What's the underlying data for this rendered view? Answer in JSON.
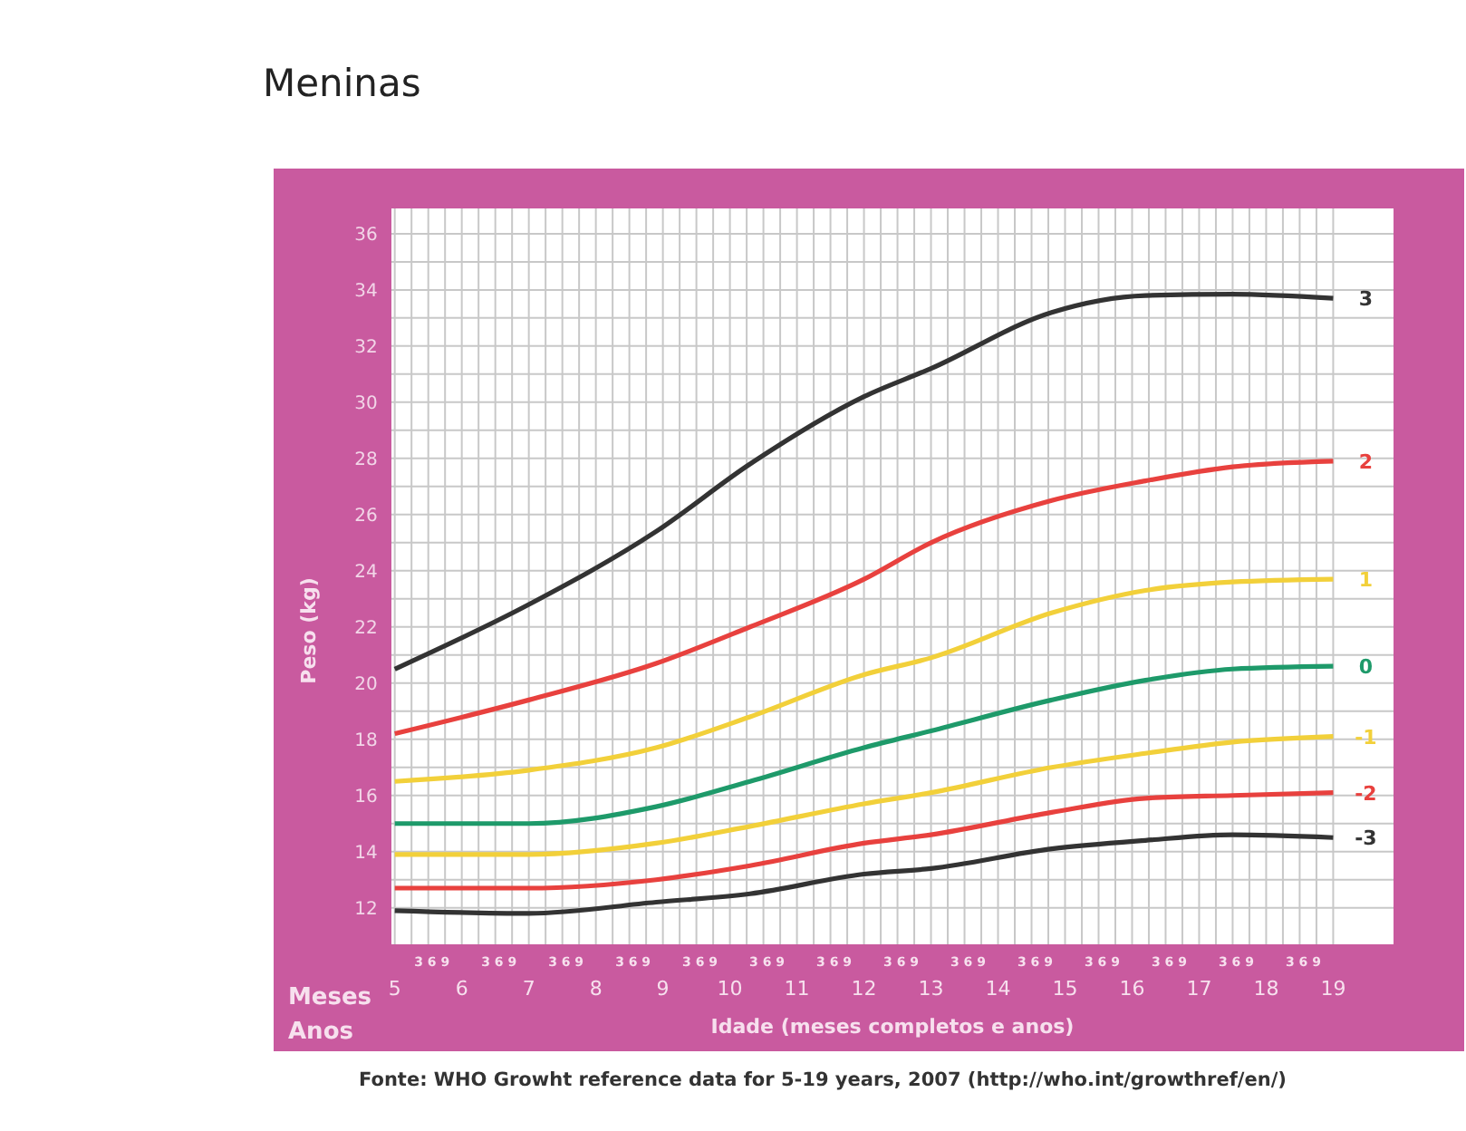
{
  "chart_data": {
    "type": "line",
    "title": "Meninas",
    "xlabel": "Idade (meses completos e anos)",
    "ylabel": "Peso (kg)",
    "annotations": [
      "Meses",
      "Anos",
      "Fonte: WHO Growht reference data for 5-19 years, 2007 (http://who.int/growthref/en/)",
      "3 6 9",
      "3 6 9",
      "3 6 9",
      "3 6 9",
      "3 6 9",
      "3 6 9",
      "3 6 9",
      "3 6 9",
      "3 6 9",
      "3 6 9",
      "3 6 9",
      "3 6 9",
      "3 6 9",
      "3 6 9"
    ],
    "x": [
      5,
      7,
      8.9,
      10.3,
      12,
      13,
      14.8,
      16.2,
      17.5,
      19
    ],
    "series": [
      {
        "name": "3",
        "color": "#333333",
        "values": [
          20.5,
          22.8,
          25.4,
          27.8,
          30.2,
          31.2,
          33.2,
          33.8,
          33.85,
          33.7
        ]
      },
      {
        "name": "2",
        "color": "#e8413e",
        "values": [
          18.2,
          19.4,
          20.7,
          22.0,
          23.7,
          25.0,
          26.5,
          27.2,
          27.7,
          27.9
        ]
      },
      {
        "name": "1",
        "color": "#f2d03a",
        "values": [
          16.5,
          16.9,
          17.7,
          18.8,
          20.3,
          20.9,
          22.5,
          23.3,
          23.6,
          23.7
        ]
      },
      {
        "name": "0",
        "color": "#1e9a6a",
        "values": [
          15.0,
          15.0,
          15.6,
          16.5,
          17.7,
          18.3,
          19.4,
          20.1,
          20.5,
          20.6
        ]
      },
      {
        "name": "-1",
        "color": "#f2d03a",
        "values": [
          13.9,
          13.9,
          14.3,
          14.9,
          15.7,
          16.1,
          17.0,
          17.5,
          17.9,
          18.1
        ]
      },
      {
        "name": "-2",
        "color": "#e8413e",
        "values": [
          12.7,
          12.7,
          13.0,
          13.5,
          14.3,
          14.6,
          15.4,
          15.9,
          16.0,
          16.1
        ]
      },
      {
        "name": "-3",
        "color": "#333333",
        "values": [
          11.9,
          11.8,
          12.2,
          12.5,
          13.2,
          13.4,
          14.1,
          14.4,
          14.6,
          14.5
        ]
      }
    ],
    "xlim": [
      4.95,
      19.9
    ],
    "ylim": [
      10.7,
      36.9
    ],
    "xticks": [
      5,
      {
        "value": 5.25,
        "label": null
      },
      {
        "value": 5.5,
        "label": null
      },
      {
        "value": 5.75,
        "label": null
      },
      6,
      {
        "value": 6.25,
        "label": null
      },
      {
        "value": 6.5,
        "label": null
      },
      {
        "value": 6.75,
        "label": null
      },
      7,
      {
        "value": 7.25,
        "label": null
      },
      {
        "value": 7.5,
        "label": null
      },
      {
        "value": 7.75,
        "label": null
      },
      8,
      {
        "value": 8.25,
        "label": null
      },
      {
        "value": 8.5,
        "label": null
      },
      {
        "value": 8.75,
        "label": null
      },
      9,
      {
        "value": 9.25,
        "label": null
      },
      {
        "value": 9.5,
        "label": null
      },
      {
        "value": 9.75,
        "label": null
      },
      10,
      {
        "value": 10.25,
        "label": null
      },
      {
        "value": 10.5,
        "label": null
      },
      {
        "value": 10.75,
        "label": null
      },
      11,
      {
        "value": 11.25,
        "label": null
      },
      {
        "value": 11.5,
        "label": null
      },
      {
        "value": 11.75,
        "label": null
      },
      12,
      {
        "value": 12.25,
        "label": null
      },
      {
        "value": 12.5,
        "label": null
      },
      {
        "value": 12.75,
        "label": null
      },
      13,
      {
        "value": 13.25,
        "label": null
      },
      {
        "value": 13.5,
        "label": null
      },
      {
        "value": 13.75,
        "label": null
      },
      14,
      {
        "value": 14.25,
        "label": null
      },
      {
        "value": 14.5,
        "label": null
      },
      {
        "value": 14.75,
        "label": null
      },
      15,
      {
        "value": 15.25,
        "label": null
      },
      {
        "value": 15.5,
        "label": null
      },
      {
        "value": 15.75,
        "label": null
      },
      16,
      {
        "value": 16.25,
        "label": null
      },
      {
        "value": 16.5,
        "label": null
      },
      {
        "value": 16.75,
        "label": null
      },
      17,
      {
        "value": 17.25,
        "label": null
      },
      {
        "value": 17.5,
        "label": null
      },
      {
        "value": 17.75,
        "label": null
      },
      18,
      {
        "value": 18.25,
        "label": null
      },
      {
        "value": 18.5,
        "label": null
      },
      {
        "value": 18.75,
        "label": null
      },
      19
    ],
    "yticks": [
      12,
      {
        "value": 13,
        "label": null
      },
      14,
      {
        "value": 15,
        "label": null
      },
      16,
      {
        "value": 17,
        "label": null
      },
      18,
      {
        "value": 19,
        "label": null
      },
      20,
      {
        "value": 21,
        "label": null
      },
      22,
      {
        "value": 23,
        "label": null
      },
      24,
      {
        "value": 25,
        "label": null
      },
      26,
      {
        "value": 27,
        "label": null
      },
      28,
      {
        "value": 29,
        "label": null
      },
      30,
      {
        "value": 31,
        "label": null
      },
      32,
      {
        "value": 33,
        "label": null
      },
      34,
      {
        "value": 35,
        "label": null
      },
      36
    ],
    "grid": true,
    "marker": "none",
    "line_style": "solid"
  }
}
